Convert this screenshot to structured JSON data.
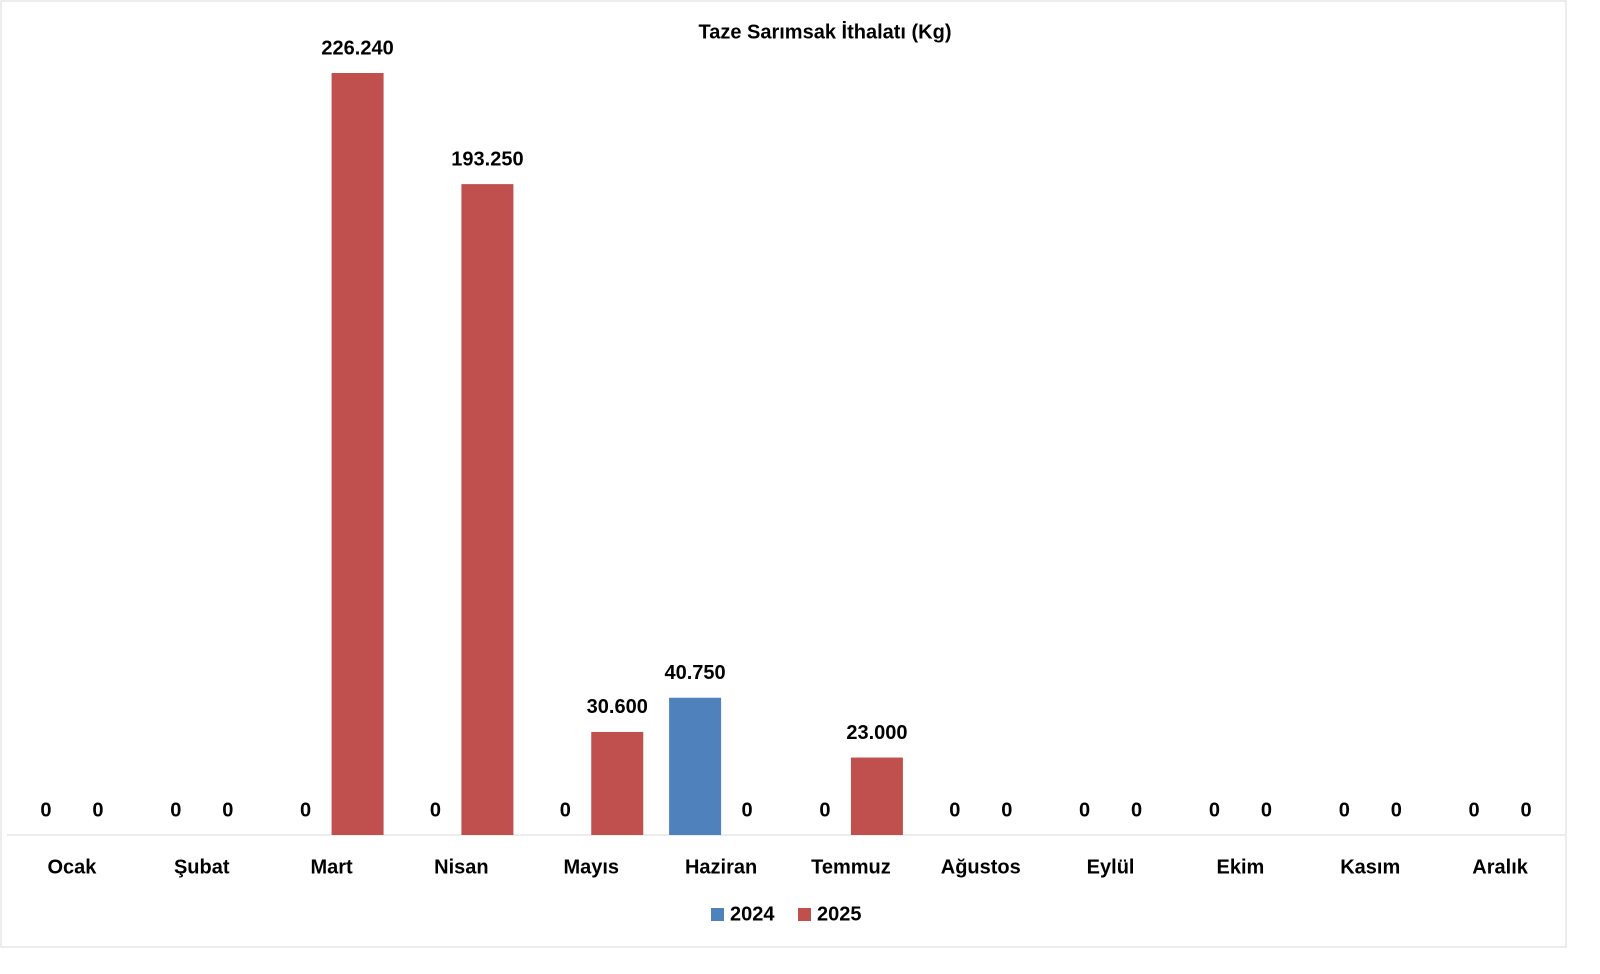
{
  "chart_data": {
    "type": "bar",
    "title": "Taze Sarımsak İthalatı (Kg)",
    "categories": [
      "Ocak",
      "Şubat",
      "Mart",
      "Nisan",
      "Mayıs",
      "Haziran",
      "Temmuz",
      "Ağustos",
      "Eylül",
      "Ekim",
      "Kasım",
      "Aralık"
    ],
    "series": [
      {
        "name": "2024",
        "color": "#4f81bd",
        "values": [
          0,
          0,
          0,
          0,
          0,
          40750,
          0,
          0,
          0,
          0,
          0,
          0
        ],
        "value_labels": [
          "0",
          "0",
          "0",
          "0",
          "0",
          "40.750",
          "0",
          "0",
          "0",
          "0",
          "0",
          "0"
        ]
      },
      {
        "name": "2025",
        "color": "#c0504d",
        "values": [
          0,
          0,
          226240,
          193250,
          30600,
          0,
          23000,
          0,
          0,
          0,
          0,
          0
        ],
        "value_labels": [
          "0",
          "0",
          "226.240",
          "193.250",
          "30.600",
          "0",
          "23.000",
          "0",
          "0",
          "0",
          "0",
          "0"
        ]
      }
    ],
    "legend": "bottom"
  }
}
